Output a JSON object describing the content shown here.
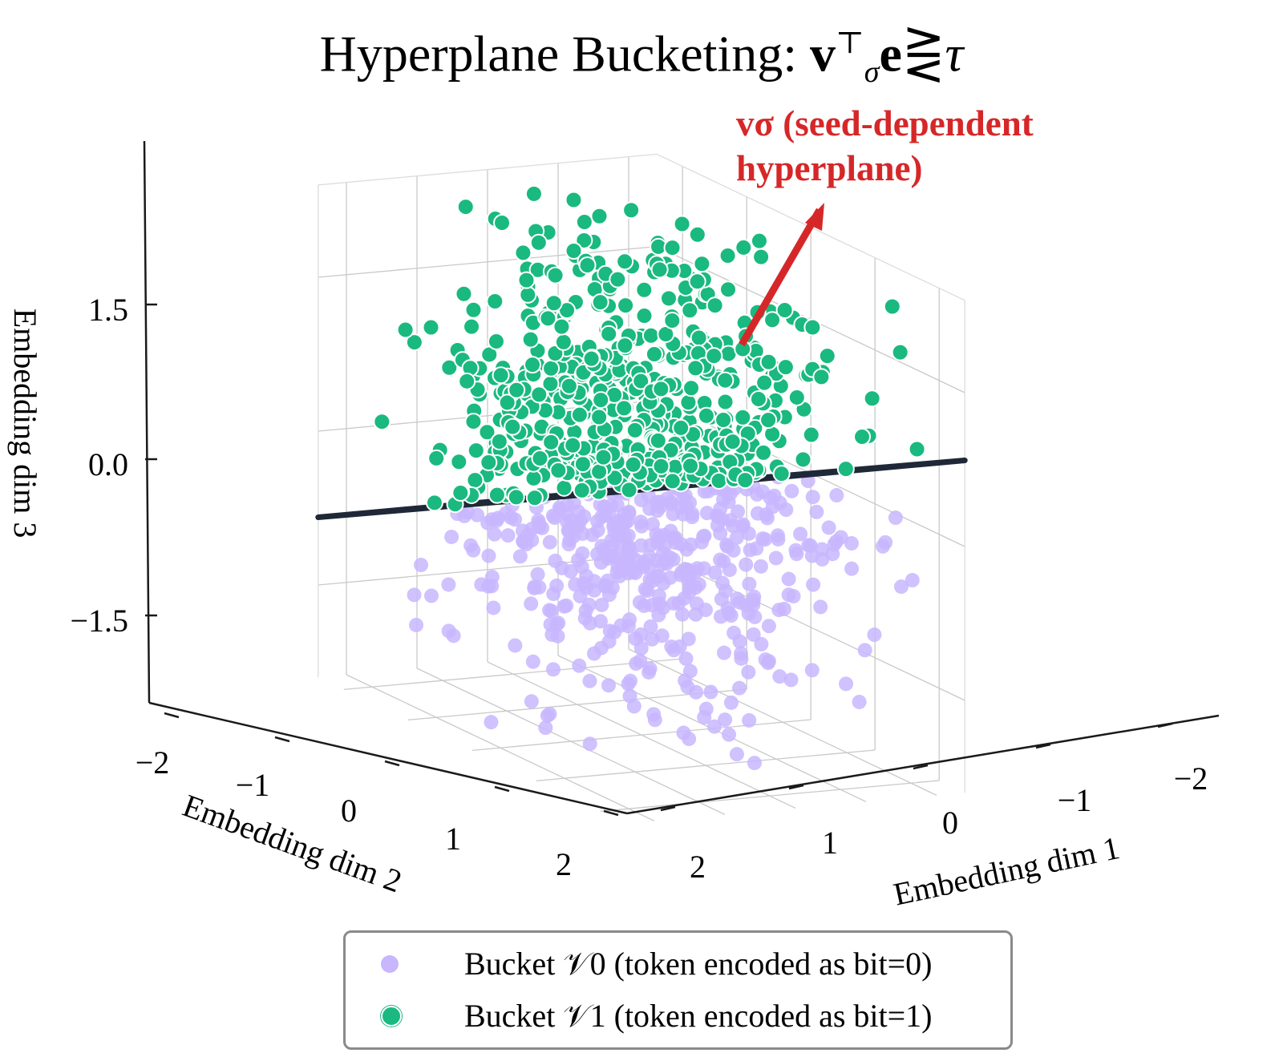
{
  "title": {
    "prefix": "Hyperplane Bucketing: ",
    "vector": "v",
    "superscript": "⊤",
    "subscript": "σ",
    "vector2": "e",
    "relation": "⋛",
    "threshold": "τ"
  },
  "annotation": {
    "line1": "vσ (seed-dependent",
    "line2": "hyperplane)",
    "color": "#d62728"
  },
  "legend": [
    {
      "label": "Bucket 𝒱0 (token encoded as bit=0)",
      "color": "#c8b6ff"
    },
    {
      "label": "Bucket 𝒱1 (token encoded as bit=1)",
      "color": "#1ab97f"
    }
  ],
  "chart_data": {
    "type": "scatter",
    "projection": "3d",
    "xlabel": "Embedding dim 1",
    "ylabel": "Embedding dim 2",
    "zlabel": "Embedding dim 3",
    "xticks": [
      "−2",
      "−1",
      "0",
      "1",
      "2"
    ],
    "yticks": [
      "−2",
      "−1",
      "0",
      "1",
      "2"
    ],
    "zticks": [
      "1.5",
      "0.0",
      "−1.5"
    ],
    "xlim": [
      -2.4,
      2.4
    ],
    "ylim": [
      -2.4,
      2.4
    ],
    "zlim": [
      -2.4,
      2.4
    ],
    "grid": true,
    "legend_position": "bottom-center",
    "hyperplane": {
      "normal": [
        0,
        0.35,
        1
      ],
      "threshold": 0
    },
    "series": [
      {
        "name": "Bucket 𝒱0 (token encoded as bit=0)",
        "bucket": 0,
        "color": "#c8b6ff",
        "count": 500
      },
      {
        "name": "Bucket 𝒱1 (token encoded as bit=1)",
        "bucket": 1,
        "color": "#1ab97f",
        "count": 500
      }
    ],
    "points_distribution": "standard normal in 3 dimensions, split by the hyperplane"
  }
}
